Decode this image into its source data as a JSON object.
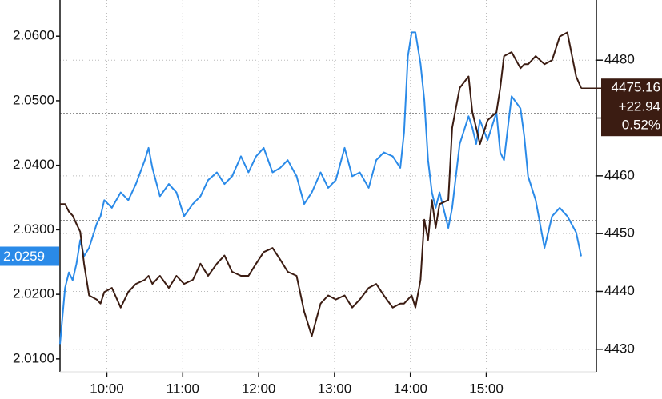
{
  "chart_data": {
    "type": "line",
    "x": [
      "09:23",
      "09:27",
      "09:30",
      "09:33",
      "09:36",
      "09:39",
      "09:42",
      "09:46",
      "09:52",
      "09:55",
      "09:58",
      "10:04",
      "10:11",
      "10:17",
      "10:23",
      "10:30",
      "10:33",
      "10:36",
      "10:42",
      "10:49",
      "10:55",
      "11:01",
      "11:08",
      "11:14",
      "11:20",
      "11:27",
      "11:33",
      "11:39",
      "11:46",
      "11:52",
      "11:58",
      "12:04",
      "12:11",
      "12:17",
      "12:23",
      "12:30",
      "12:36",
      "12:42",
      "12:49",
      "12:55",
      "13:01",
      "13:08",
      "13:14",
      "13:20",
      "13:27",
      "13:33",
      "13:39",
      "13:46",
      "13:52",
      "13:55",
      "13:58",
      "14:01",
      "14:04",
      "14:08",
      "14:11",
      "14:14",
      "14:17",
      "14:20",
      "14:23",
      "14:30",
      "14:33",
      "14:39",
      "14:46",
      "14:49",
      "14:52",
      "14:55",
      "15:01",
      "15:08",
      "15:11",
      "15:14",
      "15:20",
      "15:27",
      "15:30",
      "15:33",
      "15:39",
      "15:46",
      "15:52",
      "15:58",
      "16:04",
      "16:11",
      "16:15"
    ],
    "series": [
      {
        "color": "#2a8ae8",
        "axis": "y",
        "values": [
          2.0123,
          2.021,
          2.0234,
          2.0222,
          2.0247,
          2.0284,
          2.0259,
          2.0272,
          2.0309,
          2.0321,
          2.0346,
          2.0334,
          2.0358,
          2.0346,
          2.0371,
          2.0408,
          2.0427,
          2.0396,
          2.0352,
          2.0371,
          2.0358,
          2.0321,
          2.034,
          2.0352,
          2.0377,
          2.0389,
          2.0371,
          2.0383,
          2.0414,
          2.0389,
          2.0414,
          2.0427,
          2.0389,
          2.0396,
          2.0408,
          2.0383,
          2.034,
          2.0358,
          2.0389,
          2.0365,
          2.0377,
          2.0427,
          2.0383,
          2.0389,
          2.0365,
          2.0408,
          2.042,
          2.0414,
          2.0396,
          2.0451,
          2.0569,
          2.0606,
          2.0606,
          2.0557,
          2.0501,
          2.0408,
          2.0358,
          2.0334,
          2.0358,
          2.0303,
          2.0334,
          2.0433,
          2.0476,
          2.0458,
          2.0433,
          2.047,
          2.0439,
          2.0482,
          2.042,
          2.0408,
          2.0507,
          2.0488,
          2.0445,
          2.0383,
          2.0346,
          2.0272,
          2.0321,
          2.0334,
          2.0321,
          2.0296,
          2.0259
        ]
      },
      {
        "color": "#3b1c12",
        "axis": "y2",
        "values": [
          4455.1,
          4455.1,
          4453.8,
          4453.1,
          4451.7,
          4450.3,
          4444.8,
          4439.3,
          4438.6,
          4437.9,
          4439.9,
          4440.6,
          4437.2,
          4439.9,
          4441.3,
          4442.0,
          4442.7,
          4441.3,
          4442.7,
          4440.6,
          4442.7,
          4441.3,
          4442.0,
          4444.8,
          4442.7,
          4444.8,
          4446.2,
          4443.4,
          4442.7,
          4442.7,
          4444.8,
          4446.8,
          4447.5,
          4445.5,
          4443.4,
          4442.7,
          4436.5,
          4432.3,
          4437.9,
          4439.3,
          4438.6,
          4439.3,
          4437.2,
          4438.6,
          4440.6,
          4441.3,
          4439.3,
          4437.2,
          4437.9,
          4437.9,
          4438.6,
          4439.3,
          4437.2,
          4442.0,
          4452.4,
          4448.9,
          4455.8,
          4451.0,
          4455.1,
          4455.8,
          4468.3,
          4475.2,
          4477.2,
          4471.0,
          4468.3,
          4465.5,
          4469.6,
          4471.0,
          4475.2,
          4480.7,
          4481.4,
          4478.6,
          4479.3,
          4479.3,
          4480.7,
          4479.3,
          4480.0,
          4484.1,
          4484.8,
          4477.2,
          4475.16
        ]
      }
    ],
    "xlim": [
      "09:23",
      "16:27"
    ],
    "xticks": [
      "10:00",
      "11:00",
      "12:00",
      "13:00",
      "14:00",
      "15:00"
    ],
    "ylim": [
      2.008,
      2.0656
    ],
    "yticks": [
      {
        "value": 2.01,
        "label": "2.0100"
      },
      {
        "value": 2.02,
        "label": "2.0200"
      },
      {
        "value": 2.03,
        "label": "2.0300"
      },
      {
        "value": 2.04,
        "label": "2.0400"
      },
      {
        "value": 2.05,
        "label": "2.0500"
      },
      {
        "value": 2.06,
        "label": "2.0600"
      }
    ],
    "y2lim": [
      4426.1,
      4490.4
    ],
    "y2ticks": [
      4430,
      4440,
      4450,
      4460,
      4470,
      4480
    ],
    "grid": true,
    "ref_lines": [
      {
        "axis": "y2",
        "value": 4452.22
      },
      {
        "axis": "y",
        "value": 2.048
      }
    ],
    "change": {
      "value": 22.94,
      "label": "+22.94"
    },
    "change_pct": {
      "value": 0.52,
      "label": "0.52%"
    }
  }
}
